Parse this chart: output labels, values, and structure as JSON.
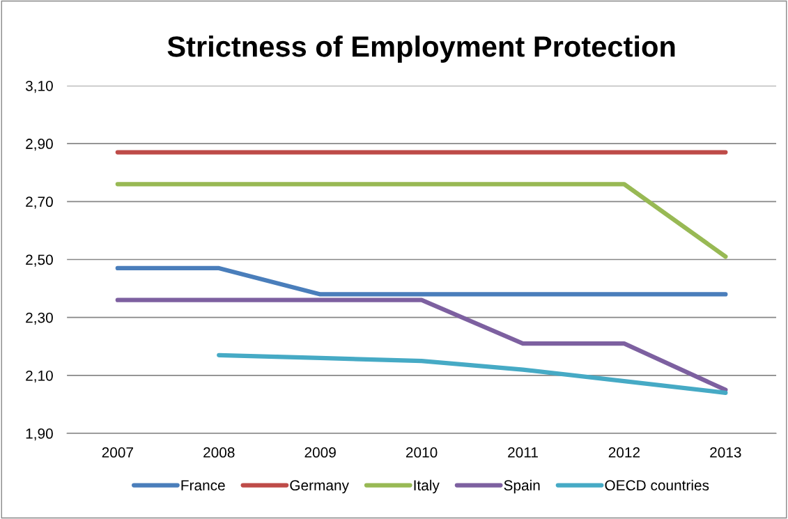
{
  "chart_data": {
    "type": "line",
    "title": "Strictness of Employment Protection",
    "categories": [
      "2007",
      "2008",
      "2009",
      "2010",
      "2011",
      "2012",
      "2013"
    ],
    "series": [
      {
        "name": "France",
        "color": "#4a7ebb",
        "values": [
          2.47,
          2.47,
          2.38,
          2.38,
          2.38,
          2.38,
          2.38
        ]
      },
      {
        "name": "Germany",
        "color": "#be4b48",
        "values": [
          2.87,
          2.87,
          2.87,
          2.87,
          2.87,
          2.87,
          2.87
        ]
      },
      {
        "name": "Italy",
        "color": "#98b954",
        "values": [
          2.76,
          2.76,
          2.76,
          2.76,
          2.76,
          2.76,
          2.51
        ]
      },
      {
        "name": "Spain",
        "color": "#7d60a0",
        "values": [
          2.36,
          2.36,
          2.36,
          2.36,
          2.21,
          2.21,
          2.05
        ]
      },
      {
        "name": "OECD countries",
        "color": "#46aac5",
        "values": [
          null,
          2.17,
          2.16,
          2.15,
          2.12,
          2.08,
          2.04
        ]
      }
    ],
    "ylim": [
      1.9,
      3.1
    ],
    "yticks": [
      {
        "value": 1.9,
        "label": "1,90"
      },
      {
        "value": 2.1,
        "label": "2,10"
      },
      {
        "value": 2.3,
        "label": "2,30"
      },
      {
        "value": 2.5,
        "label": "2,50"
      },
      {
        "value": 2.7,
        "label": "2,70"
      },
      {
        "value": 2.9,
        "label": "2,90"
      },
      {
        "value": 3.1,
        "label": "3,10"
      }
    ],
    "grid": "y",
    "legend": "bottom",
    "marker": "none",
    "line_style": "solid"
  }
}
